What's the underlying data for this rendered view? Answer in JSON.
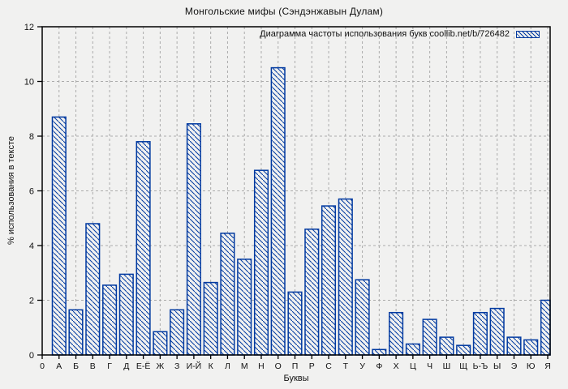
{
  "window": {
    "title": "Монгольские мифы (Сэндэнжавын Дулам)"
  },
  "chart_data": {
    "type": "bar",
    "title": "Монгольские мифы (Сэндэнжавын Дулам)",
    "legend_label": "Диаграмма частоты использования букв coollib.net/b/726482",
    "xlabel": "Буквы",
    "ylabel": "% использования в тексте",
    "origin_tick_label": "0",
    "categories": [
      "А",
      "Б",
      "В",
      "Г",
      "Д",
      "Е-Ё",
      "Ж",
      "З",
      "И-Й",
      "К",
      "Л",
      "М",
      "Н",
      "О",
      "П",
      "Р",
      "С",
      "Т",
      "У",
      "Ф",
      "Х",
      "Ц",
      "Ч",
      "Ш",
      "Щ",
      "Ь-Ъ",
      "Ы",
      "Э",
      "Ю",
      "Я"
    ],
    "values": [
      8.7,
      1.65,
      4.8,
      2.55,
      2.95,
      7.8,
      0.85,
      1.65,
      8.45,
      2.65,
      4.45,
      3.5,
      6.75,
      10.5,
      2.3,
      4.6,
      5.45,
      5.7,
      2.75,
      0.2,
      1.55,
      0.4,
      1.3,
      0.65,
      0.35,
      1.55,
      1.7,
      0.65,
      0.55,
      2.0
    ],
    "ylim": [
      0,
      12
    ],
    "ytick_step": 2,
    "grid": true,
    "legend_position": "top-right",
    "hatch_direction": "backslash",
    "colors": {
      "bar": "#0039a0",
      "grid": "#ababab",
      "axis": "#000000",
      "background": "#f1f1f0",
      "text": "#111111"
    }
  }
}
